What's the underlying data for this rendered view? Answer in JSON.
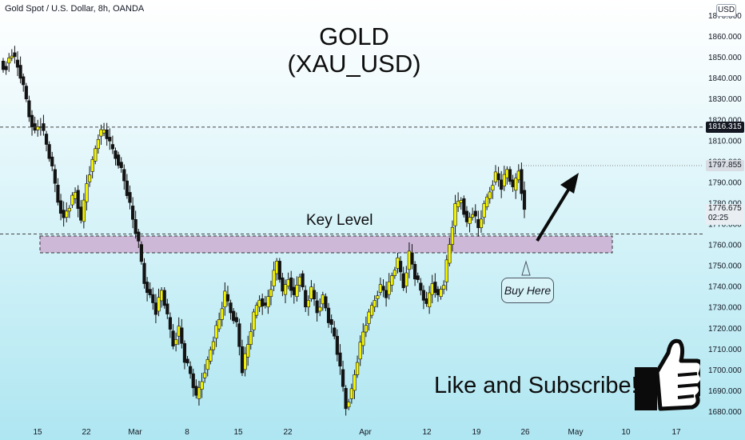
{
  "header": {
    "symbol_info": "Gold Spot / U.S. Dollar, 8h, OANDA",
    "currency": "USD"
  },
  "title": {
    "line1": "GOLD",
    "line2": "(XAU_USD)"
  },
  "annotations": {
    "key_level": "Key Level",
    "buy_here": "Buy Here",
    "like_subscribe": "Like and Subscribe!"
  },
  "price_labels": {
    "resistance": "1816.315",
    "recent_high": "1797.855",
    "current_price": "1776.675",
    "countdown": "02:25"
  },
  "icons": {
    "thumb": "thumbs-up-icon",
    "arrow": "up-arrow-icon"
  },
  "colors": {
    "candle_up": "#f4f400",
    "candle_down": "#131313",
    "zone_fill": "#cdb8d8",
    "dashed_line": "#555555"
  },
  "chart_data": {
    "type": "candlestick",
    "title": "GOLD (XAU_USD)",
    "timeframe": "8h",
    "y_axis": {
      "ticks": [
        1870,
        1860,
        1850,
        1840,
        1830,
        1820,
        1810,
        1800,
        1790,
        1780,
        1770,
        1760,
        1750,
        1740,
        1730,
        1720,
        1710,
        1700,
        1690,
        1680
      ],
      "tick_labels": [
        "1870.000",
        "1860.000",
        "1850.000",
        "1840.000",
        "1830.000",
        "1820.000",
        "1810.000",
        "1800.000",
        "1790.000",
        "1780.000",
        "1770.000",
        "1760.000",
        "1750.000",
        "1740.000",
        "1730.000",
        "1720.000",
        "1710.000",
        "1700.000",
        "1690.000",
        "1680.000"
      ],
      "ylim": [
        1677,
        1873
      ]
    },
    "x_axis": {
      "tick_labels": [
        "15",
        "22",
        "Mar",
        "8",
        "15",
        "22",
        "Apr",
        "12",
        "19",
        "26",
        "May",
        "10",
        "17"
      ]
    },
    "levels": {
      "resistance": 1816.315,
      "recent_high": 1797.855,
      "key_zone": [
        1757,
        1765
      ],
      "key_line": 1765
    },
    "trend_lines": [
      {
        "name": "key-level-line",
        "value": 1765
      },
      {
        "name": "resistance-line",
        "value": 1816.315
      }
    ],
    "price_path": [
      [
        1848,
        1843
      ],
      [
        1847,
        1852
      ],
      [
        1852,
        1845
      ],
      [
        1846,
        1835
      ],
      [
        1836,
        1822
      ],
      [
        1822,
        1814
      ],
      [
        1815,
        1818
      ],
      [
        1818,
        1808
      ],
      [
        1808,
        1796
      ],
      [
        1796,
        1781
      ],
      [
        1781,
        1772
      ],
      [
        1773,
        1779
      ],
      [
        1779,
        1785
      ],
      [
        1786,
        1770
      ],
      [
        1771,
        1790
      ],
      [
        1790,
        1800
      ],
      [
        1800,
        1812
      ],
      [
        1812,
        1815
      ],
      [
        1815,
        1808
      ],
      [
        1808,
        1802
      ],
      [
        1803,
        1796
      ],
      [
        1796,
        1785
      ],
      [
        1785,
        1772
      ],
      [
        1772,
        1760
      ],
      [
        1760,
        1742
      ],
      [
        1742,
        1735
      ],
      [
        1736,
        1728
      ],
      [
        1728,
        1738
      ],
      [
        1738,
        1725
      ],
      [
        1725,
        1712
      ],
      [
        1712,
        1720
      ],
      [
        1720,
        1705
      ],
      [
        1705,
        1698
      ],
      [
        1698,
        1686
      ],
      [
        1686,
        1695
      ],
      [
        1696,
        1704
      ],
      [
        1704,
        1715
      ],
      [
        1715,
        1724
      ],
      [
        1724,
        1736
      ],
      [
        1736,
        1728
      ],
      [
        1728,
        1722
      ],
      [
        1722,
        1700
      ],
      [
        1700,
        1712
      ],
      [
        1712,
        1726
      ],
      [
        1726,
        1734
      ],
      [
        1734,
        1730
      ],
      [
        1730,
        1740
      ],
      [
        1740,
        1752
      ],
      [
        1752,
        1736
      ],
      [
        1736,
        1744
      ],
      [
        1744,
        1735
      ],
      [
        1735,
        1746
      ],
      [
        1746,
        1730
      ],
      [
        1730,
        1738
      ],
      [
        1738,
        1728
      ],
      [
        1728,
        1735
      ],
      [
        1735,
        1724
      ],
      [
        1724,
        1716
      ],
      [
        1716,
        1700
      ],
      [
        1700,
        1682
      ],
      [
        1682,
        1690
      ],
      [
        1690,
        1705
      ],
      [
        1705,
        1718
      ],
      [
        1718,
        1726
      ],
      [
        1726,
        1734
      ],
      [
        1734,
        1740
      ],
      [
        1740,
        1736
      ],
      [
        1736,
        1745
      ],
      [
        1745,
        1752
      ],
      [
        1752,
        1740
      ],
      [
        1740,
        1756
      ],
      [
        1756,
        1745
      ],
      [
        1745,
        1738
      ],
      [
        1738,
        1730
      ],
      [
        1730,
        1742
      ],
      [
        1742,
        1735
      ],
      [
        1735,
        1742
      ],
      [
        1742,
        1760
      ],
      [
        1760,
        1778
      ],
      [
        1778,
        1782
      ],
      [
        1782,
        1770
      ],
      [
        1770,
        1776
      ],
      [
        1776,
        1768
      ],
      [
        1768,
        1778
      ],
      [
        1778,
        1786
      ],
      [
        1786,
        1794
      ],
      [
        1794,
        1788
      ],
      [
        1788,
        1796
      ],
      [
        1796,
        1786
      ],
      [
        1786,
        1796
      ],
      [
        1796,
        1776
      ]
    ]
  }
}
